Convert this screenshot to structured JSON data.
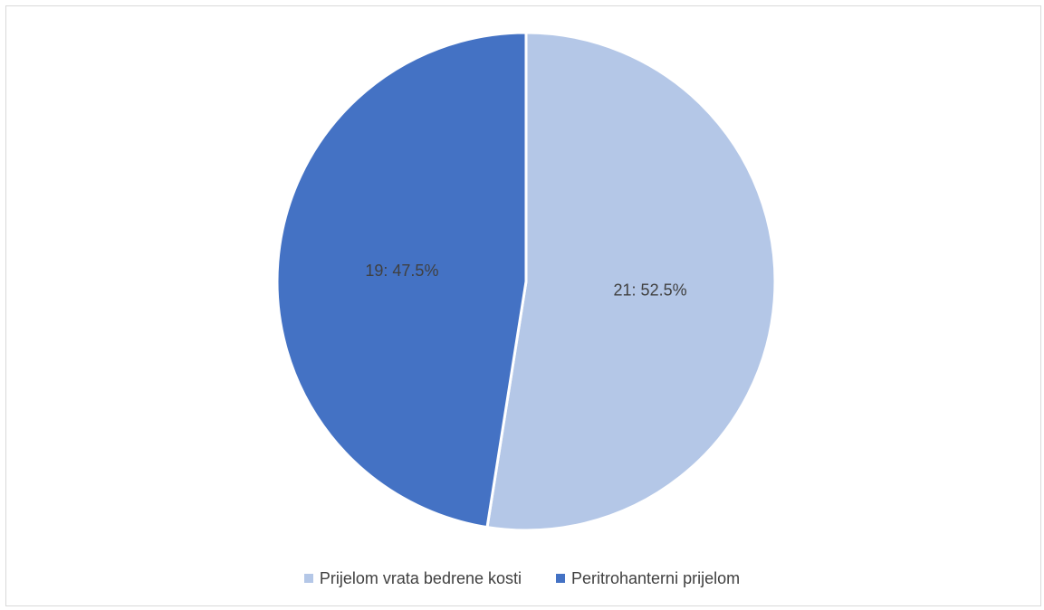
{
  "chart_data": {
    "type": "pie",
    "categories": [
      "Prijelom vrata bedrene kosti",
      "Peritrohanterni prijelom"
    ],
    "values": [
      21,
      19
    ],
    "percentages": [
      "52.5%",
      "47.5%"
    ],
    "data_labels": [
      "21: 52.5%",
      "19: 47.5%"
    ],
    "colors": [
      "#b4c7e7",
      "#4472c4"
    ],
    "legend_position": "bottom"
  }
}
